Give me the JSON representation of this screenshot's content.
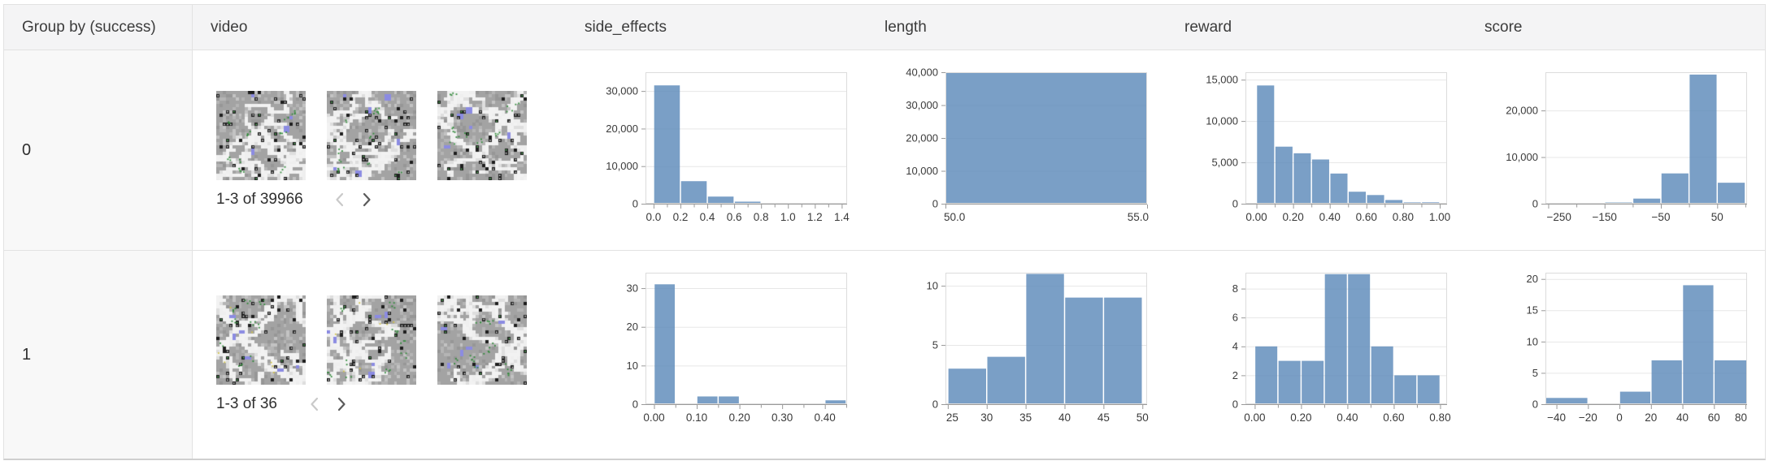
{
  "table": {
    "columns": [
      {
        "key": "group",
        "label": "Group by (success)"
      },
      {
        "key": "video",
        "label": "video"
      },
      {
        "key": "side_effects",
        "label": "side_effects"
      },
      {
        "key": "length",
        "label": "length"
      },
      {
        "key": "reward",
        "label": "reward"
      },
      {
        "key": "score",
        "label": "score"
      }
    ],
    "rows": [
      {
        "group_label": "0",
        "video": {
          "pagination_label": "1-3 of 39966",
          "thumbnail_count": 3,
          "prev_enabled": false,
          "next_enabled": true,
          "prev_icon": "chevron-left-icon",
          "next_icon": "chevron-right-icon"
        },
        "charts": {
          "side_effects": 0,
          "length": 1,
          "reward": 2,
          "score": 3
        }
      },
      {
        "group_label": "1",
        "video": {
          "pagination_label": "1-3 of 36",
          "thumbnail_count": 3,
          "prev_enabled": false,
          "next_enabled": true,
          "prev_icon": "chevron-left-icon",
          "next_icon": "chevron-right-icon"
        },
        "charts": {
          "side_effects": 4,
          "length": 5,
          "reward": 6,
          "score": 7
        }
      }
    ]
  },
  "chart_data": [
    {
      "type": "bar",
      "column": "side_effects",
      "group": "0",
      "xdomain": [
        -0.06,
        1.44
      ],
      "ymax": 35000,
      "bins": [
        [
          0.0,
          0.2,
          31500
        ],
        [
          0.2,
          0.4,
          6000
        ],
        [
          0.4,
          0.6,
          1900
        ],
        [
          0.6,
          0.8,
          550
        ]
      ],
      "xticks": [
        {
          "v": 0.0,
          "label": "0.0"
        },
        {
          "v": 0.2,
          "label": "0.2"
        },
        {
          "v": 0.4,
          "label": "0.4"
        },
        {
          "v": 0.6,
          "label": "0.6"
        },
        {
          "v": 0.8,
          "label": "0.8"
        },
        {
          "v": 1.0,
          "label": "1.0"
        },
        {
          "v": 1.2,
          "label": "1.2"
        },
        {
          "v": 1.4,
          "label": "1.4"
        }
      ],
      "xminor": [
        0.1,
        0.3,
        0.5,
        0.7,
        0.9,
        1.1,
        1.3
      ],
      "yticks": [
        {
          "v": 0,
          "label": "0"
        },
        {
          "v": 10000,
          "label": "10,000"
        },
        {
          "v": 20000,
          "label": "20,000"
        },
        {
          "v": 30000,
          "label": "30,000"
        }
      ]
    },
    {
      "type": "bar",
      "column": "length",
      "group": "0",
      "xdomain": [
        50,
        55
      ],
      "ymax": 40000,
      "bins": [
        [
          50,
          55,
          39966
        ]
      ],
      "xticks": [
        {
          "v": 50,
          "label": "50.0"
        },
        {
          "v": 55,
          "label": "55.0"
        }
      ],
      "xminor": [],
      "yticks": [
        {
          "v": 0,
          "label": "0"
        },
        {
          "v": 10000,
          "label": "10,000"
        },
        {
          "v": 20000,
          "label": "20,000"
        },
        {
          "v": 30000,
          "label": "30,000"
        },
        {
          "v": 40000,
          "label": "40,000"
        }
      ]
    },
    {
      "type": "bar",
      "column": "reward",
      "group": "0",
      "xdomain": [
        -0.06,
        1.04
      ],
      "ymax": 15900,
      "bins": [
        [
          0.0,
          0.1,
          14300
        ],
        [
          0.1,
          0.2,
          6900
        ],
        [
          0.2,
          0.3,
          6100
        ],
        [
          0.3,
          0.4,
          5350
        ],
        [
          0.4,
          0.5,
          3650
        ],
        [
          0.5,
          0.6,
          1450
        ],
        [
          0.6,
          0.7,
          1050
        ],
        [
          0.7,
          0.8,
          450
        ],
        [
          0.8,
          0.9,
          160
        ],
        [
          0.9,
          1.0,
          170
        ]
      ],
      "xticks": [
        {
          "v": 0.0,
          "label": "0.00"
        },
        {
          "v": 0.2,
          "label": "0.20"
        },
        {
          "v": 0.4,
          "label": "0.40"
        },
        {
          "v": 0.6,
          "label": "0.60"
        },
        {
          "v": 0.8,
          "label": "0.80"
        },
        {
          "v": 1.0,
          "label": "1.00"
        }
      ],
      "xminor": [
        0.1,
        0.3,
        0.5,
        0.7,
        0.9
      ],
      "yticks": [
        {
          "v": 0,
          "label": "0"
        },
        {
          "v": 5000,
          "label": "5,000"
        },
        {
          "v": 10000,
          "label": "10,000"
        },
        {
          "v": 15000,
          "label": "15,000"
        }
      ]
    },
    {
      "type": "bar",
      "column": "score",
      "group": "0",
      "xdomain": [
        -255,
        103
      ],
      "ymax": 28200,
      "bins": [
        [
          -250,
          -200,
          100
        ],
        [
          -200,
          -150,
          160
        ],
        [
          -150,
          -100,
          260
        ],
        [
          -100,
          -50,
          1100
        ],
        [
          -50,
          0,
          6500
        ],
        [
          0,
          50,
          27700
        ],
        [
          50,
          100,
          4500
        ]
      ],
      "xticks": [
        {
          "v": -250,
          "label": "−250"
        },
        {
          "v": -150,
          "label": "−150"
        },
        {
          "v": -50,
          "label": "−50"
        },
        {
          "v": 50,
          "label": "50"
        }
      ],
      "xminor": [
        -200,
        -100,
        0,
        100
      ],
      "yticks": [
        {
          "v": 0,
          "label": "0"
        },
        {
          "v": 10000,
          "label": "10,000"
        },
        {
          "v": 20000,
          "label": "20,000"
        }
      ]
    },
    {
      "type": "bar",
      "column": "side_effects",
      "group": "1",
      "xdomain": [
        -0.02,
        0.452
      ],
      "ymax": 34,
      "bins": [
        [
          0.0,
          0.05,
          31
        ],
        [
          0.1,
          0.15,
          2
        ],
        [
          0.15,
          0.2,
          2
        ],
        [
          0.4,
          0.45,
          1
        ]
      ],
      "xticks": [
        {
          "v": 0.0,
          "label": "0.00"
        },
        {
          "v": 0.1,
          "label": "0.10"
        },
        {
          "v": 0.2,
          "label": "0.20"
        },
        {
          "v": 0.3,
          "label": "0.30"
        },
        {
          "v": 0.4,
          "label": "0.40"
        }
      ],
      "xminor": [
        0.05,
        0.15,
        0.25,
        0.35,
        0.45
      ],
      "yticks": [
        {
          "v": 0,
          "label": "0"
        },
        {
          "v": 10,
          "label": "10"
        },
        {
          "v": 20,
          "label": "20"
        },
        {
          "v": 30,
          "label": "30"
        }
      ]
    },
    {
      "type": "bar",
      "column": "length",
      "group": "1",
      "xdomain": [
        24.7,
        50.6
      ],
      "ymax": 11.1,
      "bins": [
        [
          25,
          30,
          3
        ],
        [
          30,
          35,
          4
        ],
        [
          35,
          40,
          11
        ],
        [
          40,
          45,
          9
        ],
        [
          45,
          50,
          9
        ]
      ],
      "xticks": [
        {
          "v": 25,
          "label": "25"
        },
        {
          "v": 30,
          "label": "30"
        },
        {
          "v": 35,
          "label": "35"
        },
        {
          "v": 40,
          "label": "40"
        },
        {
          "v": 45,
          "label": "45"
        },
        {
          "v": 50,
          "label": "50"
        }
      ],
      "xminor": [],
      "yticks": [
        {
          "v": 0,
          "label": "0"
        },
        {
          "v": 5,
          "label": "5"
        },
        {
          "v": 10,
          "label": "10"
        }
      ]
    },
    {
      "type": "bar",
      "column": "reward",
      "group": "1",
      "xdomain": [
        -0.04,
        0.83
      ],
      "ymax": 9.1,
      "bins": [
        [
          0.0,
          0.1,
          4
        ],
        [
          0.1,
          0.2,
          3
        ],
        [
          0.2,
          0.3,
          3
        ],
        [
          0.3,
          0.4,
          9
        ],
        [
          0.4,
          0.5,
          9
        ],
        [
          0.5,
          0.6,
          4
        ],
        [
          0.6,
          0.7,
          2
        ],
        [
          0.7,
          0.8,
          2
        ]
      ],
      "xticks": [
        {
          "v": 0.0,
          "label": "0.00"
        },
        {
          "v": 0.2,
          "label": "0.20"
        },
        {
          "v": 0.4,
          "label": "0.40"
        },
        {
          "v": 0.6,
          "label": "0.60"
        },
        {
          "v": 0.8,
          "label": "0.80"
        }
      ],
      "xminor": [
        0.1,
        0.3,
        0.5,
        0.7
      ],
      "yticks": [
        {
          "v": 0,
          "label": "0"
        },
        {
          "v": 2,
          "label": "2"
        },
        {
          "v": 4,
          "label": "4"
        },
        {
          "v": 6,
          "label": "6"
        },
        {
          "v": 8,
          "label": "8"
        }
      ]
    },
    {
      "type": "bar",
      "column": "score",
      "group": "1",
      "xdomain": [
        -47,
        81
      ],
      "ymax": 21,
      "bins": [
        [
          -47,
          -20,
          1
        ],
        [
          0,
          20,
          2
        ],
        [
          20,
          40,
          7
        ],
        [
          40,
          60,
          19
        ],
        [
          60,
          81,
          7
        ]
      ],
      "xticks": [
        {
          "v": -40,
          "label": "−40"
        },
        {
          "v": -20,
          "label": "−20"
        },
        {
          "v": 0,
          "label": "0"
        },
        {
          "v": 20,
          "label": "20"
        },
        {
          "v": 40,
          "label": "40"
        },
        {
          "v": 60,
          "label": "60"
        },
        {
          "v": 80,
          "label": "80"
        }
      ],
      "xminor": [],
      "yticks": [
        {
          "v": 0,
          "label": "0"
        },
        {
          "v": 5,
          "label": "5"
        },
        {
          "v": 10,
          "label": "10"
        },
        {
          "v": 15,
          "label": "15"
        },
        {
          "v": 20,
          "label": "20"
        }
      ]
    }
  ],
  "colors": {
    "bar": "rgba(93,138,186,0.82)",
    "grid": "#e7e7e7",
    "plot_border": "#dcdcdc",
    "axis": "#9a9a9a",
    "axis_label": "#3a3a3a",
    "chevron_disabled": "#c9c9c9",
    "chevron_enabled": "#5a5a5a",
    "header_bg": "#f4f4f5",
    "group_col_bg": "#f8f8f8",
    "border": "#e2e2e2"
  }
}
